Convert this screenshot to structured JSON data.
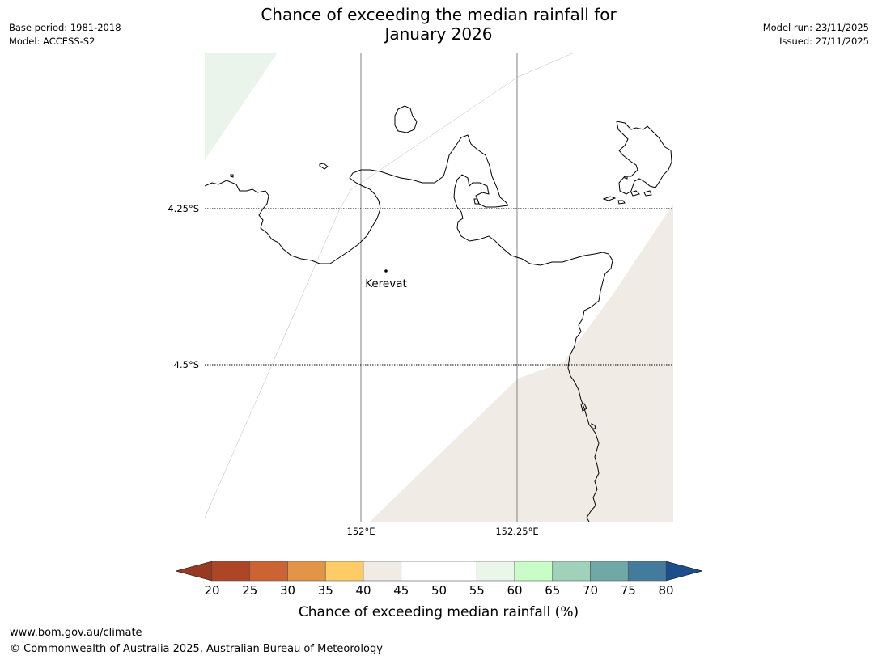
{
  "header": {
    "title_line1": "Chance of exceeding the median rainfall for",
    "title_line2": "January 2026",
    "base_period": "Base period: 1981-2018",
    "model": "Model: ACCESS-S2",
    "model_run": "Model run: 23/11/2025",
    "issued": "Issued: 27/11/2025"
  },
  "map": {
    "lat_labels": [
      "4.25°S",
      "4.5°S"
    ],
    "lon_labels": [
      "152°E",
      "152.25°E"
    ],
    "places": [
      {
        "name": "Kerevat"
      }
    ],
    "colors": {
      "land_outline": "#000000",
      "gridline": "#808080",
      "region_green": "#eaf4ea",
      "region_beige": "#f0ebe5"
    }
  },
  "colorbar": {
    "label": "Chance of exceeding median rainfall (%)",
    "ticks": [
      "20",
      "25",
      "30",
      "35",
      "40",
      "45",
      "50",
      "55",
      "60",
      "65",
      "70",
      "75",
      "80"
    ],
    "under_color": "#963a22",
    "over_color": "#1d4e89",
    "colors": [
      "#ad4626",
      "#cc6332",
      "#e39447",
      "#fecc66",
      "#f0ebe5",
      "#ffffff",
      "#ffffff",
      "#eaf6ea",
      "#c8fdc8",
      "#a0d2b9",
      "#6fa8a7",
      "#427b9c"
    ]
  },
  "footer": {
    "url": "www.bom.gov.au/climate",
    "copyright": "© Commonwealth of Australia 2025, Australian Bureau of Meteorology"
  }
}
